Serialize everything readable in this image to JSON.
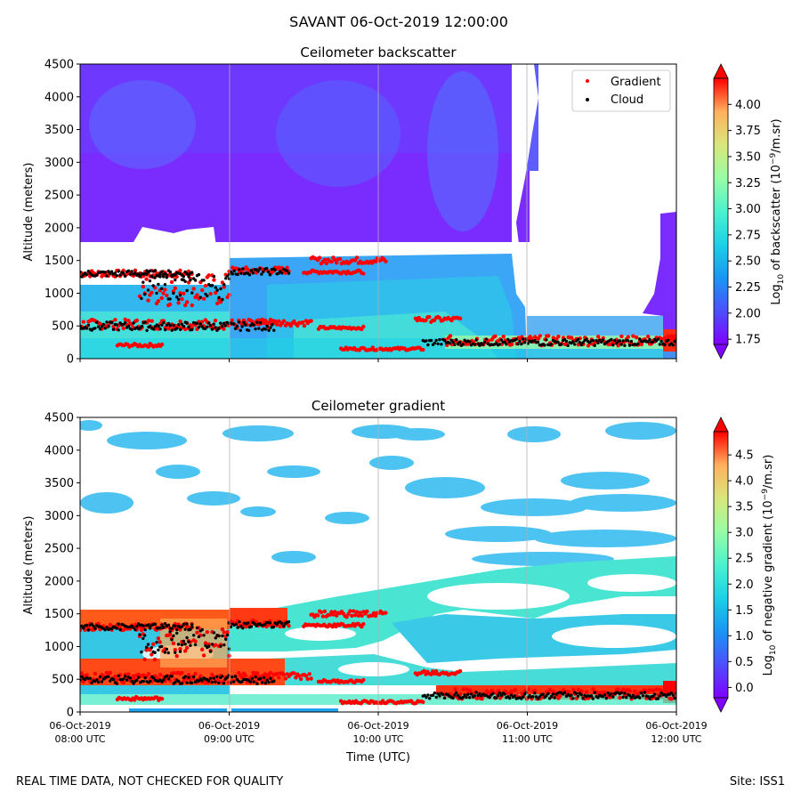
{
  "suptitle": "SAVANT 06-Oct-2019 12:00:00",
  "footer_left": "REAL TIME DATA, NOT CHECKED FOR QUALITY",
  "footer_right": "Site: ISS1",
  "colors": {
    "gradient_marker": "#ff0000",
    "cloud_marker": "#000000",
    "colormap": "rainbow"
  },
  "chart_data": [
    {
      "type": "heatmap",
      "title": "Ceilometer backscatter",
      "ylabel": "Altitude (meters)",
      "xlabel": "",
      "ylim": [
        0,
        4500
      ],
      "xlim": [
        8,
        12
      ],
      "yticks": [
        0,
        500,
        1000,
        1500,
        2000,
        2500,
        3000,
        3500,
        4000,
        4500
      ],
      "xticks": [
        8,
        9,
        10,
        11,
        12
      ],
      "show_xtick_labels": false,
      "grid": "vertical",
      "legend": {
        "placement": "top-right",
        "entries": [
          {
            "label": "Gradient",
            "color": "#ff0000"
          },
          {
            "label": "Cloud",
            "color": "#000000"
          }
        ]
      },
      "colorbar": {
        "label": "Log10 of backscatter (10^-9/m.sr)",
        "vmin": 1.7,
        "vmax": 4.25,
        "ticks": [
          1.75,
          2.0,
          2.25,
          2.5,
          2.75,
          3.0,
          3.25,
          3.5,
          3.75,
          4.0
        ],
        "tick_labels": [
          "1.75",
          "2.00",
          "2.25",
          "2.50",
          "2.75",
          "3.00",
          "3.25",
          "3.50",
          "3.75",
          "4.00"
        ]
      },
      "series": [
        {
          "name": "Gradient",
          "kind": "scatter",
          "segments": [
            {
              "t": [
                8.0,
                8.75
              ],
              "alt": [
                1250,
                1350
              ]
            },
            {
              "t": [
                8.0,
                9.3
              ],
              "alt": [
                450,
                600
              ]
            },
            {
              "t": [
                8.25,
                8.55
              ],
              "alt": [
                180,
                230
              ]
            },
            {
              "t": [
                8.4,
                9.0
              ],
              "alt": [
                800,
                1300
              ]
            },
            {
              "t": [
                9.0,
                9.4
              ],
              "alt": [
                1300,
                1400
              ]
            },
            {
              "t": [
                9.5,
                9.9
              ],
              "alt": [
                1300,
                1350
              ]
            },
            {
              "t": [
                9.55,
                10.05
              ],
              "alt": [
                1450,
                1550
              ]
            },
            {
              "t": [
                9.15,
                9.55
              ],
              "alt": [
                500,
                600
              ]
            },
            {
              "t": [
                9.6,
                9.9
              ],
              "alt": [
                450,
                490
              ]
            },
            {
              "t": [
                9.75,
                10.3
              ],
              "alt": [
                130,
                170
              ]
            },
            {
              "t": [
                10.25,
                10.55
              ],
              "alt": [
                560,
                640
              ]
            },
            {
              "t": [
                10.45,
                12.0
              ],
              "alt": [
                200,
                350
              ]
            }
          ]
        },
        {
          "name": "Cloud",
          "kind": "scatter",
          "segments": [
            {
              "t": [
                8.0,
                8.75
              ],
              "alt": [
                1250,
                1350
              ]
            },
            {
              "t": [
                8.0,
                9.3
              ],
              "alt": [
                430,
                560
              ]
            },
            {
              "t": [
                8.4,
                9.0
              ],
              "alt": [
                900,
                1300
              ]
            },
            {
              "t": [
                9.0,
                9.4
              ],
              "alt": [
                1280,
                1380
              ]
            },
            {
              "t": [
                10.3,
                12.0
              ],
              "alt": [
                200,
                300
              ]
            }
          ]
        }
      ]
    },
    {
      "type": "heatmap",
      "title": "Ceilometer gradient",
      "ylabel": "Altitude (meters)",
      "xlabel": "Time (UTC)",
      "ylim": [
        0,
        4500
      ],
      "xlim": [
        8,
        12
      ],
      "yticks": [
        0,
        500,
        1000,
        1500,
        2000,
        2500,
        3000,
        3500,
        4000,
        4500
      ],
      "xticks": [
        8,
        9,
        10,
        11,
        12
      ],
      "xtick_labels": [
        [
          "06-Oct-2019",
          "08:00 UTC"
        ],
        [
          "06-Oct-2019",
          "09:00 UTC"
        ],
        [
          "06-Oct-2019",
          "10:00 UTC"
        ],
        [
          "06-Oct-2019",
          "11:00 UTC"
        ],
        [
          "06-Oct-2019",
          "12:00 UTC"
        ]
      ],
      "grid": "vertical",
      "colorbar": {
        "label": "Log10 of negative gradient (10^-9/m.sr)",
        "vmin": -0.2,
        "vmax": 4.95,
        "ticks": [
          0.0,
          0.5,
          1.0,
          1.5,
          2.0,
          2.5,
          3.0,
          3.5,
          4.0,
          4.5
        ],
        "tick_labels": [
          "0.0",
          "0.5",
          "1.0",
          "1.5",
          "2.0",
          "2.5",
          "3.0",
          "3.5",
          "4.0",
          "4.5"
        ]
      },
      "series": [
        {
          "name": "Gradient",
          "kind": "scatter"
        },
        {
          "name": "Cloud",
          "kind": "scatter"
        }
      ]
    }
  ]
}
